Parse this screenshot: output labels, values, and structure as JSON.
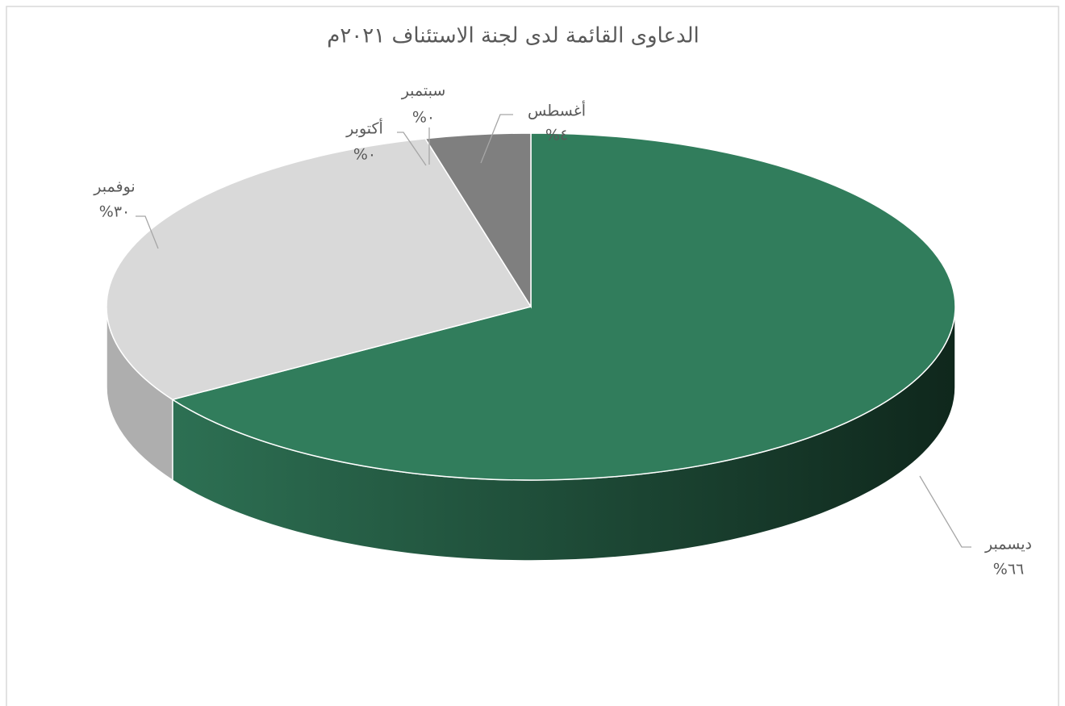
{
  "chart_data": {
    "type": "pie",
    "title": "الدعاوى القائمة لدى لجنة الاستئناف ٢٠٢١م",
    "categories": [
      "ديسمبر",
      "نوفمبر",
      "أكتوبر",
      "سبتمبر",
      "أغسطس"
    ],
    "values": [
      66,
      30,
      0,
      0,
      4
    ],
    "value_labels": [
      "%٦٦",
      "%٣٠",
      "%٠",
      "%٠",
      "%٤"
    ],
    "colors": [
      "#317d5c",
      "#d9d9d9",
      "#a5a5a5",
      "#5b9bd5",
      "#7f7f7f"
    ]
  }
}
